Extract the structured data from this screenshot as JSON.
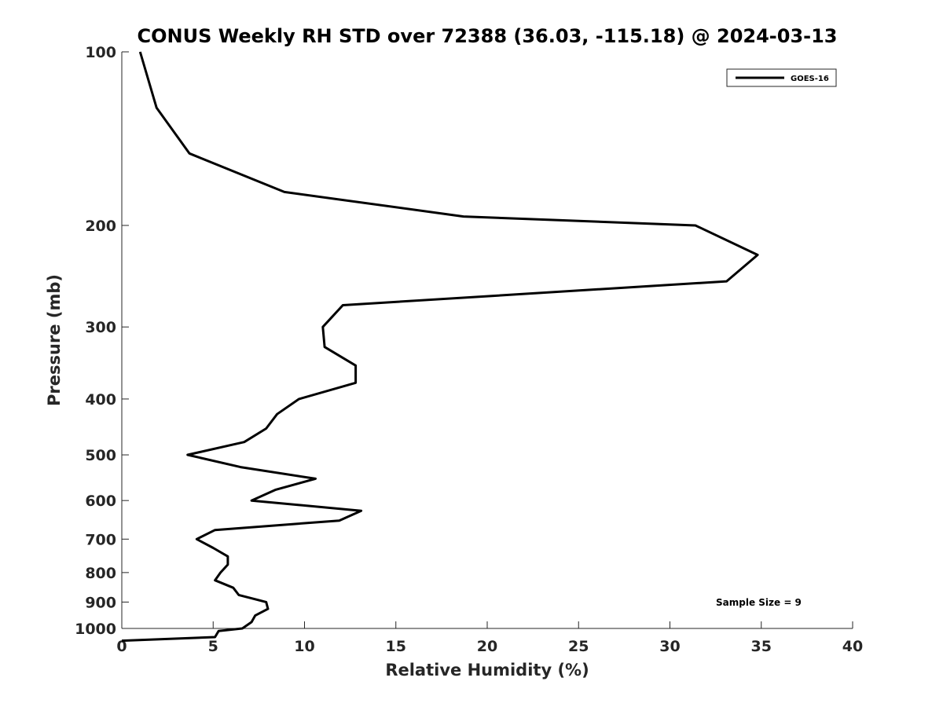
{
  "chart_data": {
    "type": "line",
    "title": "CONUS Weekly RH STD over 72388 (36.03, -115.18) @ 2024-03-13",
    "xlabel": "Relative Humidity (%)",
    "ylabel": "Pressure (mb)",
    "xlim": [
      0,
      40
    ],
    "ylim": [
      100,
      1000
    ],
    "y_scale": "log",
    "y_reversed": true,
    "x_ticks": [
      0,
      5,
      10,
      15,
      20,
      25,
      30,
      35,
      40
    ],
    "y_ticks": [
      100,
      200,
      300,
      400,
      500,
      600,
      700,
      800,
      900,
      1000
    ],
    "grid": false,
    "legend_position": "top-right",
    "series": [
      {
        "name": "GOES-16",
        "color": "#000000",
        "points": [
          [
            1.0,
            100
          ],
          [
            1.9,
            125
          ],
          [
            3.7,
            150
          ],
          [
            8.9,
            175
          ],
          [
            18.7,
            193
          ],
          [
            31.4,
            200
          ],
          [
            34.8,
            225
          ],
          [
            33.1,
            250
          ],
          [
            12.1,
            275
          ],
          [
            11.0,
            300
          ],
          [
            11.1,
            325
          ],
          [
            12.8,
            350
          ],
          [
            12.8,
            375
          ],
          [
            9.7,
            400
          ],
          [
            8.5,
            425
          ],
          [
            7.9,
            450
          ],
          [
            6.7,
            475
          ],
          [
            3.6,
            500
          ],
          [
            6.5,
            525
          ],
          [
            10.6,
            550
          ],
          [
            8.4,
            575
          ],
          [
            7.1,
            600
          ],
          [
            13.1,
            625
          ],
          [
            11.9,
            650
          ],
          [
            5.1,
            675
          ],
          [
            4.1,
            700
          ],
          [
            5.0,
            725
          ],
          [
            5.8,
            750
          ],
          [
            5.8,
            775
          ],
          [
            5.4,
            800
          ],
          [
            5.1,
            825
          ],
          [
            6.1,
            850
          ],
          [
            6.4,
            875
          ],
          [
            7.9,
            900
          ],
          [
            8.0,
            925
          ],
          [
            7.3,
            950
          ],
          [
            7.1,
            975
          ],
          [
            6.6,
            1000
          ],
          [
            5.3,
            1010
          ],
          [
            5.1,
            1035
          ],
          [
            0.0,
            1050
          ]
        ]
      }
    ],
    "annotations": [
      "Sample Size = 9"
    ]
  }
}
